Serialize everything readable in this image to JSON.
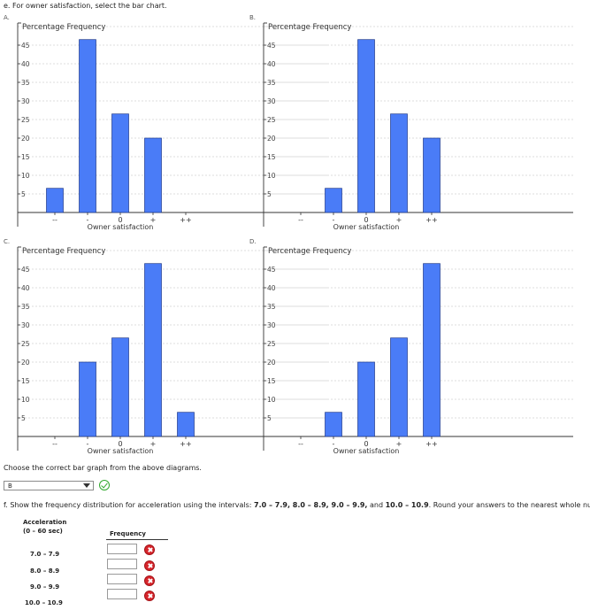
{
  "question_e": "e. For owner satisfaction, select the bar chart.",
  "chart_data": [
    {
      "letter": "A.",
      "type": "bar",
      "title": "Percentage Frequency",
      "categories": [
        "--",
        "-",
        "0",
        "+",
        "++"
      ],
      "values": [
        6.5,
        46.5,
        26.5,
        20,
        0
      ],
      "xlabel": "Owner satisfaction",
      "ylim": [
        0,
        50
      ],
      "yticks": [
        5,
        10,
        15,
        20,
        25,
        30,
        35,
        40,
        45
      ]
    },
    {
      "letter": "B.",
      "type": "bar",
      "title": "Percentage Frequency",
      "categories": [
        "--",
        "-",
        "0",
        "+",
        "++"
      ],
      "values": [
        0,
        6.5,
        46.5,
        26.5,
        20
      ],
      "xlabel": "Owner satisfaction",
      "ylim": [
        0,
        50
      ],
      "yticks": [
        5,
        10,
        15,
        20,
        25,
        30,
        35,
        40,
        45
      ]
    },
    {
      "letter": "C.",
      "type": "bar",
      "title": "Percentage Frequency",
      "categories": [
        "--",
        "-",
        "0",
        "+",
        "++"
      ],
      "values": [
        0,
        20,
        26.5,
        46.5,
        6.5
      ],
      "xlabel": "Owner satisfaction",
      "ylim": [
        0,
        50
      ],
      "yticks": [
        5,
        10,
        15,
        20,
        25,
        30,
        35,
        40,
        45
      ]
    },
    {
      "letter": "D.",
      "type": "bar",
      "title": "Percentage Frequency",
      "categories": [
        "--",
        "-",
        "0",
        "+",
        "++"
      ],
      "values": [
        0,
        6.5,
        20,
        26.5,
        46.5
      ],
      "xlabel": "Owner satisfaction",
      "ylim": [
        0,
        50
      ],
      "yticks": [
        5,
        10,
        15,
        20,
        25,
        30,
        35,
        40,
        45
      ]
    }
  ],
  "choose_prompt": "Choose the correct bar graph from the above diagrams.",
  "selected_answer": "B",
  "colors": {
    "bar": "#4a7cf7",
    "bar_border": "#1f3a8a",
    "check": "#31a82e",
    "error": "#d7262c"
  },
  "question_f": {
    "prefix": "f. Show the frequency distribution for acceleration using the intervals: ",
    "intervals_text": "7.0 – 7.9, 8.0 – 8.9, 9.0 – 9.9,",
    "and": " and ",
    "last_interval": "10.0 – 10.9",
    "suffix": ". Round your answers to the nearest whole number."
  },
  "table": {
    "col1_header_line1": "Acceleration",
    "col1_header_line2": "(0 – 60 sec)",
    "col2_header": "Frequency",
    "rows": [
      {
        "interval": "7.0 – 7.9",
        "value": ""
      },
      {
        "interval": "8.0 – 8.9",
        "value": ""
      },
      {
        "interval": "9.0 – 9.9",
        "value": ""
      },
      {
        "interval": "10.0 – 10.9",
        "value": ""
      }
    ]
  }
}
